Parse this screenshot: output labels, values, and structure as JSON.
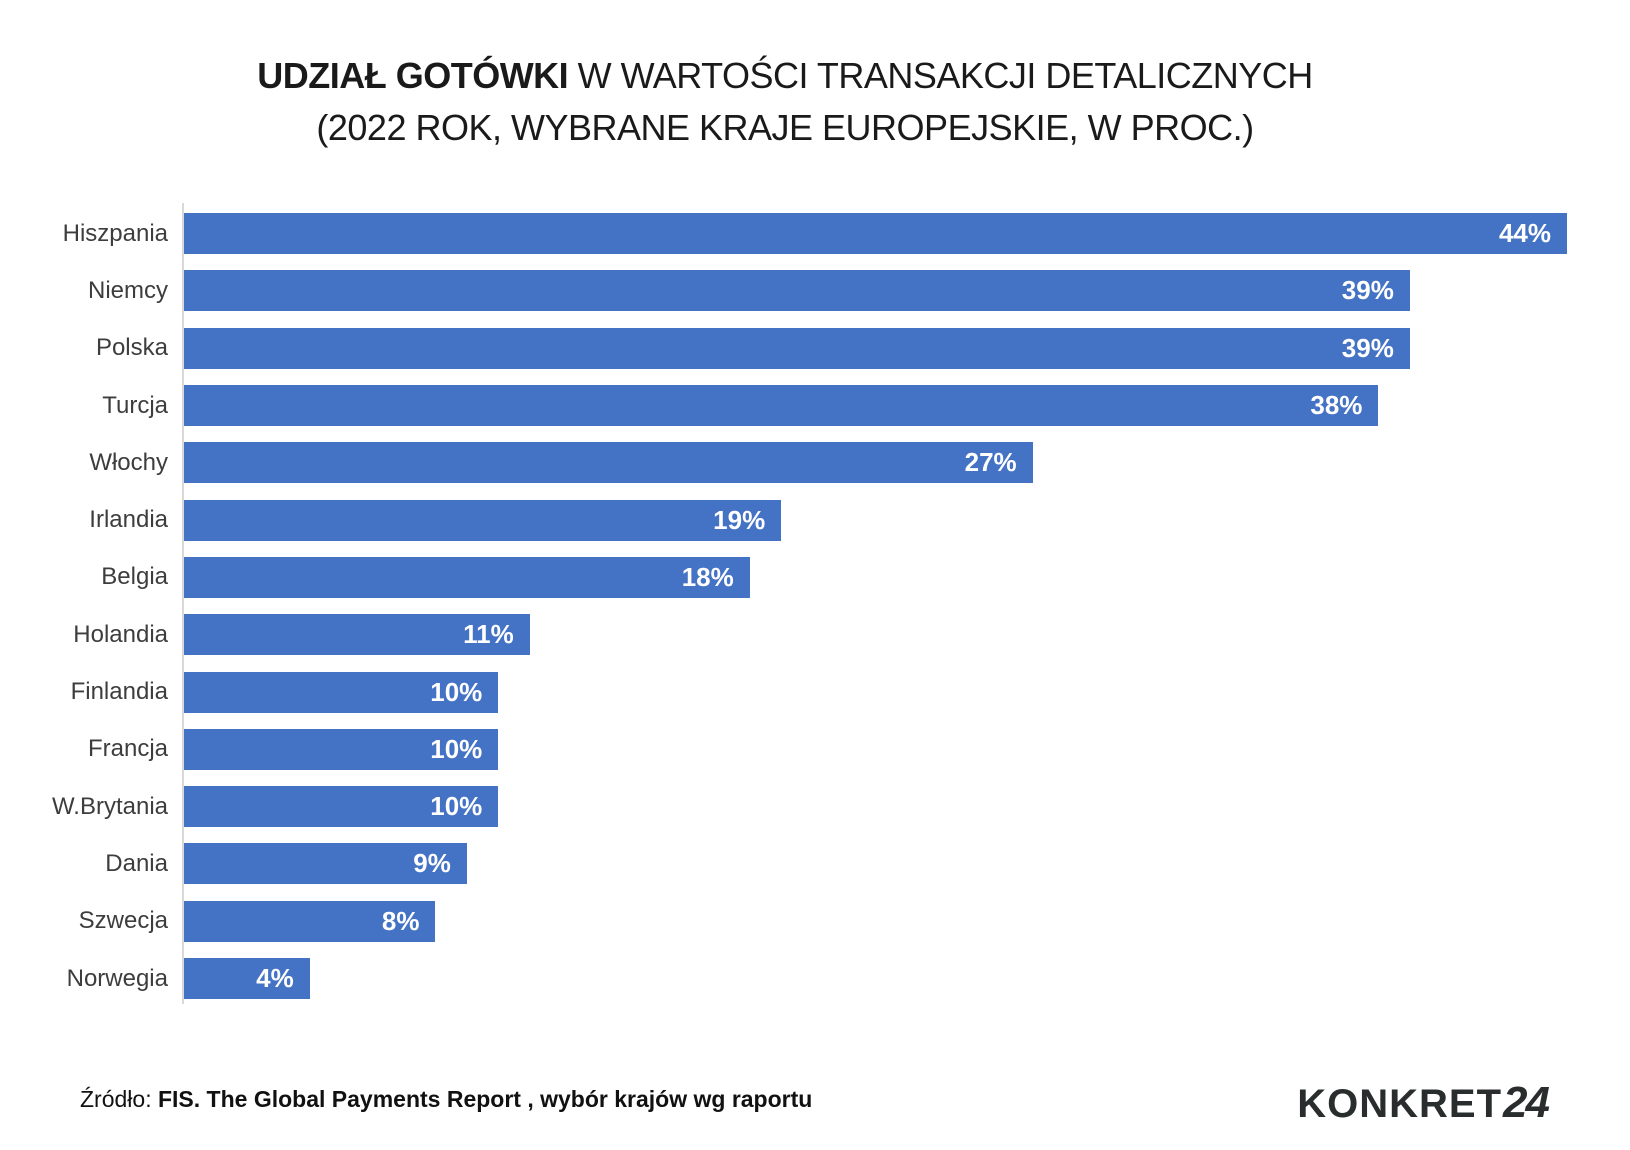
{
  "title": {
    "line1_bold": "UDZIAŁ GOTÓWKI",
    "line1_rest": " W WARTOŚCI TRANSAKCJI DETALICZNYCH",
    "line2": "(2022 ROK, WYBRANE KRAJE EUROPEJSKIE, W PROC.)"
  },
  "chart_data": {
    "type": "bar",
    "orientation": "horizontal",
    "title": "UDZIAŁ GOTÓWKI W WARTOŚCI TRANSAKCJI DETALICZNYCH (2022 ROK, WYBRANE KRAJE EUROPEJSKIE, W PROC.)",
    "categories": [
      "Hiszpania",
      "Niemcy",
      "Polska",
      "Turcja",
      "Włochy",
      "Irlandia",
      "Belgia",
      "Holandia",
      "Finlandia",
      "Francja",
      "W.Brytania",
      "Dania",
      "Szwecja",
      "Norwegia"
    ],
    "values": [
      44,
      39,
      39,
      38,
      27,
      19,
      18,
      11,
      10,
      10,
      10,
      9,
      8,
      4
    ],
    "unit": "%",
    "xlabel": "",
    "ylabel": "",
    "xlim": [
      0,
      44
    ],
    "grid": false,
    "legend": false,
    "bar_color": "#4472C4",
    "value_label_color": "#FFFFFF",
    "value_label_position": "inside-end"
  },
  "footer": {
    "source_prefix": "Źródło: ",
    "source_bold": "FIS. The Global Payments Report , wybór krajów wg raportu"
  },
  "logo": {
    "text": "KONKRET",
    "suffix": "24"
  }
}
